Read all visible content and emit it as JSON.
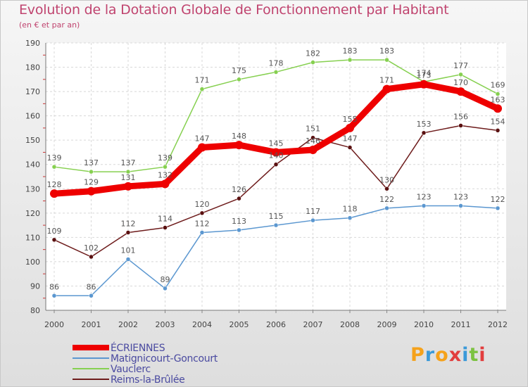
{
  "title": "Evolution de la Dotation Globale de Fonctionnement par Habitant",
  "subtitle": "(en € et par an)",
  "logo": {
    "text": "Proxiti",
    "letters": [
      {
        "ch": "P",
        "color": "#f5a21b"
      },
      {
        "ch": "r",
        "color": "#3b9ad9"
      },
      {
        "ch": "o",
        "color": "#f5a21b"
      },
      {
        "ch": "x",
        "color": "#e23d3d"
      },
      {
        "ch": "i",
        "color": "#3b9ad9"
      },
      {
        "ch": "t",
        "color": "#7cc242"
      },
      {
        "ch": "i",
        "color": "#e23d3d"
      }
    ]
  },
  "chart_data": {
    "type": "line",
    "x": [
      "2000",
      "2001",
      "2002",
      "2003",
      "2004",
      "2005",
      "2006",
      "2007",
      "2008",
      "2009",
      "2010",
      "2011",
      "2012"
    ],
    "ylim": [
      80,
      190
    ],
    "yticks": [
      80,
      90,
      100,
      110,
      120,
      130,
      140,
      150,
      160,
      170,
      180,
      190
    ],
    "grid": true,
    "legend_position": "bottom-left",
    "series": [
      {
        "name": "ÉCRIENNES",
        "color": "#ee0000",
        "width": 9,
        "marker": 6,
        "values": [
          128,
          129,
          131,
          132,
          147,
          148,
          145,
          146,
          155,
          171,
          173,
          170,
          163
        ]
      },
      {
        "name": "Matignicourt-Goncourt",
        "color": "#5b97d0",
        "width": 1.5,
        "marker": 3,
        "values": [
          86,
          86,
          101,
          89,
          112,
          113,
          115,
          117,
          118,
          122,
          123,
          123,
          122
        ]
      },
      {
        "name": "Vauclerc",
        "color": "#86d050",
        "width": 1.5,
        "marker": 3,
        "values": [
          139,
          137,
          137,
          139,
          171,
          175,
          178,
          182,
          183,
          183,
          174,
          177,
          169
        ]
      },
      {
        "name": "Reims-la-Brûlée",
        "color": "#6e1c1c",
        "width": 1.5,
        "marker": 3,
        "values": [
          109,
          102,
          112,
          114,
          120,
          126,
          140,
          151,
          147,
          130,
          153,
          156,
          154
        ]
      }
    ]
  }
}
